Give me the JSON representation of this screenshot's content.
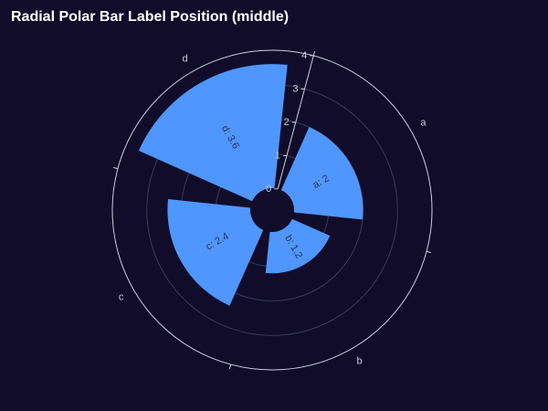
{
  "chart_data": {
    "type": "bar",
    "polar": true,
    "title": "Radial Polar Bar Label Position (middle)",
    "categories": [
      "a",
      "b",
      "c",
      "d"
    ],
    "values": [
      2,
      1.2,
      2.4,
      3.6
    ],
    "data_labels": [
      "a: 2",
      "b: 1.2",
      "c: 2.4",
      "d: 3.6"
    ],
    "radius_ticks": [
      "0",
      "1",
      "2",
      "3",
      "4"
    ],
    "rlim": [
      0,
      4
    ],
    "label_position": "middle",
    "grid": true,
    "legend": "none",
    "bar_color": "#4f96ff",
    "background_color": "#100c2a",
    "axis_color": "#ccccdd"
  }
}
